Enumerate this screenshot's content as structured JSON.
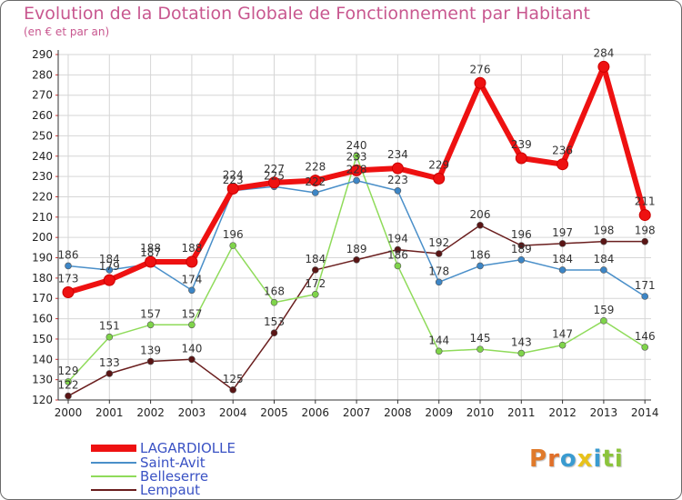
{
  "title": "Evolution de la Dotation Globale de Fonctionnement par Habitant",
  "subtitle": "(en € et par an)",
  "logo_text": "Proxiti",
  "logo_colors": [
    "#e07a2a",
    "#e0702a",
    "#3a9bd0",
    "#e8c21a",
    "#3a9bd0",
    "#8cc43c",
    "#8cc43c"
  ],
  "chart_data": {
    "type": "line",
    "x": [
      "2000",
      "2001",
      "2002",
      "2003",
      "2004",
      "2005",
      "2006",
      "2007",
      "2008",
      "2009",
      "2010",
      "2011",
      "2012",
      "2013",
      "2014"
    ],
    "ylim": [
      120,
      290
    ],
    "yticks": [
      120,
      130,
      140,
      150,
      160,
      170,
      180,
      190,
      200,
      210,
      220,
      230,
      240,
      250,
      260,
      270,
      280,
      290
    ],
    "grid": true,
    "legend_position": "bottom-left",
    "series": [
      {
        "name": "LAGARDIOLLE",
        "color": "#ee1111",
        "values": [
          173,
          179,
          188,
          188,
          224,
          227,
          228,
          233,
          234,
          229,
          276,
          239,
          236,
          284,
          211
        ],
        "labels": [
          "173",
          "179",
          "188",
          "188",
          "224",
          "227",
          "228",
          "233",
          "234",
          "229",
          "276",
          "239",
          "236",
          "284",
          "211"
        ]
      },
      {
        "name": "Saint-Avit",
        "color": "#4a8fc9",
        "values": [
          186,
          184,
          187,
          174,
          223,
          225,
          222,
          228,
          223,
          178,
          186,
          189,
          184,
          184,
          171
        ],
        "labels": [
          "186",
          "184",
          "187",
          "174",
          "223",
          "225",
          "222",
          "228",
          "223",
          "178",
          "186",
          "189",
          "184",
          "184",
          "171"
        ]
      },
      {
        "name": "Belleserre",
        "color": "#8fdb5a",
        "values": [
          129,
          151,
          157,
          157,
          196,
          168,
          172,
          240,
          186,
          144,
          145,
          143,
          147,
          159,
          146
        ],
        "labels": [
          "129",
          "151",
          "157",
          "157",
          "196",
          "168",
          "172",
          "240",
          "186",
          "144",
          "145",
          "143",
          "147",
          "159",
          "146"
        ]
      },
      {
        "name": "Lempaut",
        "color": "#6a1e1e",
        "values": [
          122,
          133,
          139,
          140,
          125,
          153,
          184,
          189,
          194,
          192,
          206,
          196,
          197,
          198,
          198
        ],
        "labels": [
          "122",
          "133",
          "139",
          "140",
          "125",
          "153",
          "184",
          "189",
          "194",
          "192",
          "206",
          "196",
          "197",
          "198",
          "198"
        ]
      }
    ]
  }
}
